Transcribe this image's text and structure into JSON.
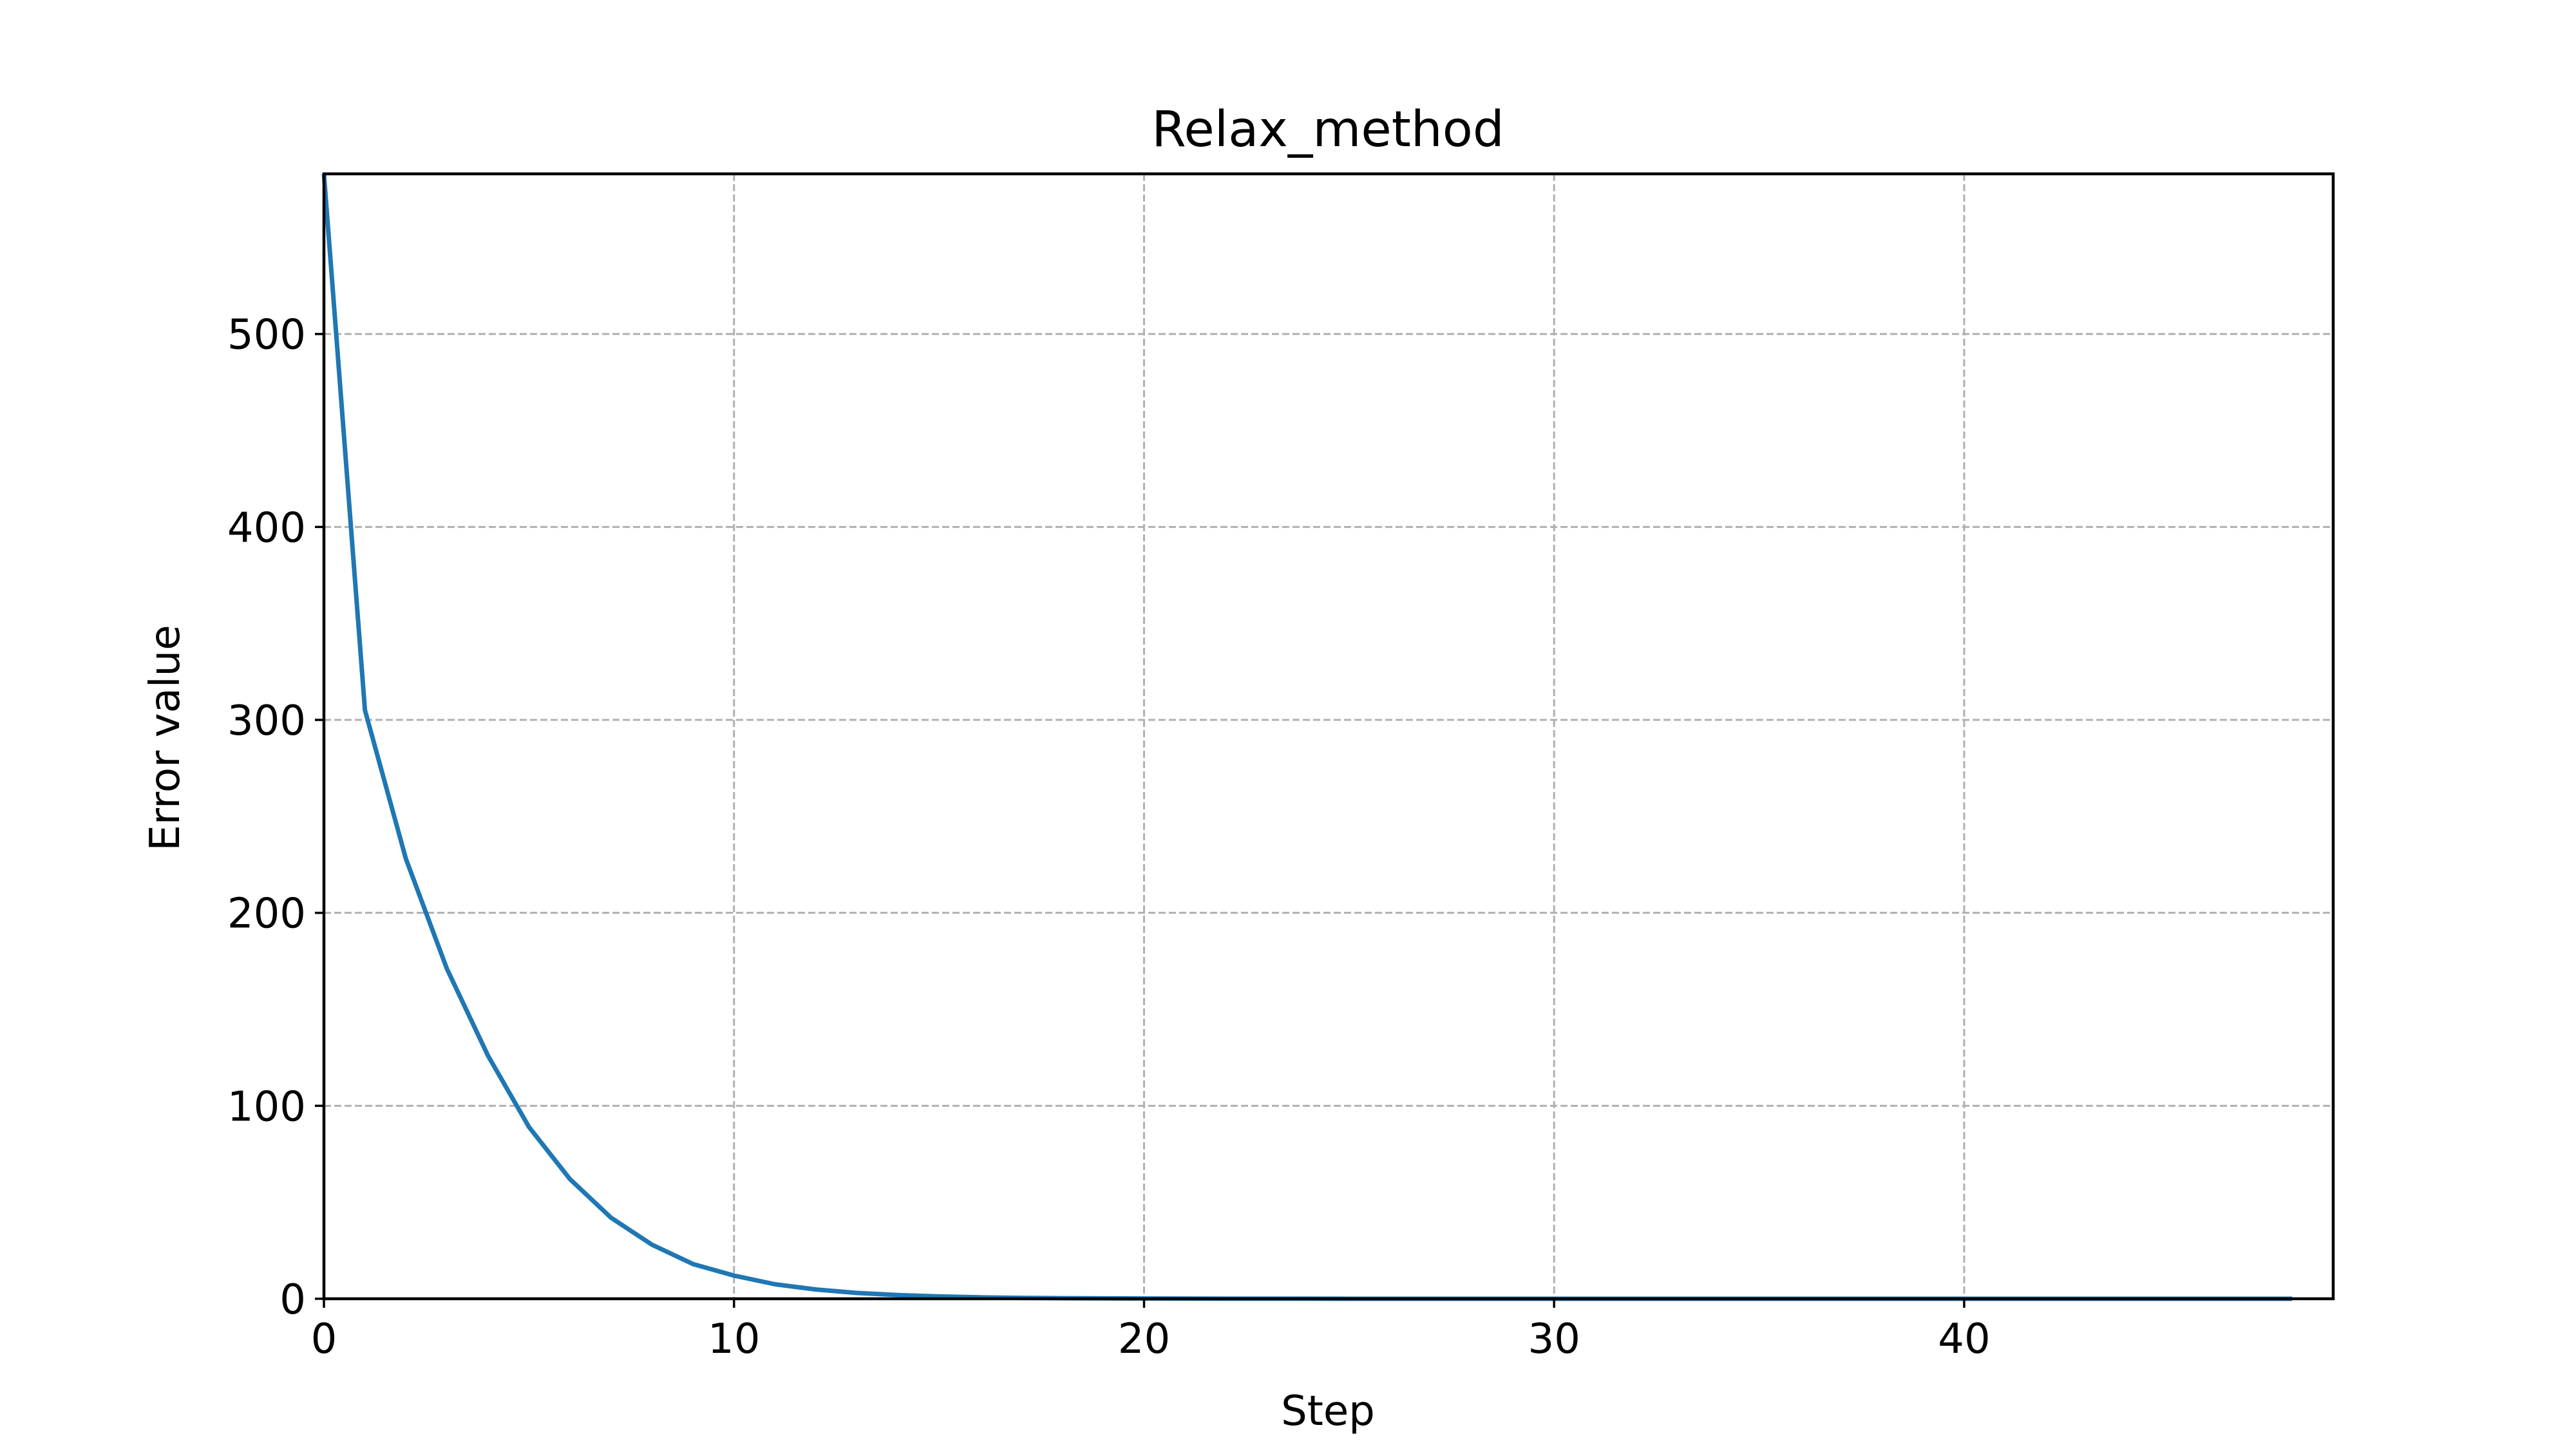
{
  "chart_data": {
    "type": "line",
    "title": "Relax_method",
    "xlabel": "Step",
    "ylabel": "Error value",
    "xlim": [
      0,
      49
    ],
    "ylim": [
      0,
      583
    ],
    "xticks": [
      "0",
      "10",
      "20",
      "30",
      "40"
    ],
    "yticks": [
      "0",
      "100",
      "200",
      "300",
      "400",
      "500"
    ],
    "grid": true,
    "series": [
      {
        "color": "#1f77b4",
        "x": [
          0,
          1,
          2,
          3,
          4,
          5,
          6,
          7,
          8,
          9,
          10,
          11,
          12,
          13,
          14,
          15,
          16,
          17,
          18,
          19,
          20,
          21,
          22,
          23,
          24,
          25,
          26,
          27,
          28,
          29,
          30,
          31,
          32,
          33,
          34,
          35,
          36,
          37,
          38,
          39,
          40,
          41,
          42,
          43,
          44,
          45,
          46,
          47,
          48
        ],
        "y": [
          583,
          305,
          228,
          171,
          126,
          89,
          62,
          42,
          28,
          18,
          12,
          7.5,
          4.8,
          3,
          1.9,
          1.2,
          0.75,
          0.47,
          0.3,
          0.19,
          0.12,
          0.08,
          0.05,
          0.03,
          0.02,
          0.01,
          0.01,
          0.01,
          0,
          0,
          0,
          0,
          0,
          0,
          0,
          0,
          0,
          0,
          0,
          0,
          0,
          0,
          0,
          0,
          0,
          0,
          0,
          0,
          0
        ]
      }
    ]
  }
}
